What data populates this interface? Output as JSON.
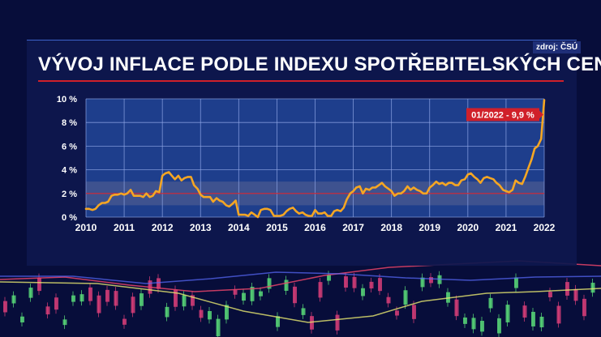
{
  "page": {
    "title": "VÝVOJ INFLACE PODLE INDEXU SPOTŘEBITELSKÝCH CEN",
    "source": "zdroj: ČSÚ"
  },
  "colors": {
    "background": "#070d3a",
    "panel": "#0e184e",
    "plot_area": "#1e3e8c",
    "grid": "#8fa6e6",
    "line": "#f5a623",
    "target_band": "#4a5a90",
    "target_line": "#d0202a",
    "callout": "#d0202a"
  },
  "chart_data": {
    "type": "line",
    "title": "VÝVOJ INFLACE PODLE INDEXU SPOTŘEBITELSKÝCH CEN",
    "xlabel": "",
    "ylabel": "",
    "x_range": [
      2010,
      2022
    ],
    "ylim": [
      0,
      10
    ],
    "x_ticks": [
      "2010",
      "2011",
      "2012",
      "2013",
      "2014",
      "2015",
      "2016",
      "2017",
      "2018",
      "2019",
      "2020",
      "2021",
      "2022"
    ],
    "y_ticks": [
      "0 %",
      "2 %",
      "4 %",
      "6 %",
      "8 %",
      "10 %"
    ],
    "grid": true,
    "target_band": [
      1,
      3
    ],
    "target_line": 2,
    "annotation": {
      "text": "01/2022 - 9,9 %",
      "x": 2022,
      "y": 9.9
    },
    "series": [
      {
        "points": [
          [
            2010.0,
            0.7
          ],
          [
            2010.08,
            0.7
          ],
          [
            2010.17,
            0.6
          ],
          [
            2010.25,
            0.7
          ],
          [
            2010.33,
            1.0
          ],
          [
            2010.42,
            1.2
          ],
          [
            2010.5,
            1.2
          ],
          [
            2010.58,
            1.3
          ],
          [
            2010.67,
            1.8
          ],
          [
            2010.75,
            1.9
          ],
          [
            2010.83,
            1.9
          ],
          [
            2010.92,
            2.0
          ],
          [
            2011.0,
            1.9
          ],
          [
            2011.08,
            2.0
          ],
          [
            2011.17,
            2.3
          ],
          [
            2011.25,
            1.8
          ],
          [
            2011.33,
            1.8
          ],
          [
            2011.42,
            1.8
          ],
          [
            2011.5,
            1.7
          ],
          [
            2011.58,
            2.0
          ],
          [
            2011.67,
            1.7
          ],
          [
            2011.75,
            1.8
          ],
          [
            2011.83,
            2.2
          ],
          [
            2011.92,
            2.1
          ],
          [
            2012.0,
            3.5
          ],
          [
            2012.08,
            3.7
          ],
          [
            2012.17,
            3.8
          ],
          [
            2012.25,
            3.5
          ],
          [
            2012.33,
            3.2
          ],
          [
            2012.42,
            3.5
          ],
          [
            2012.5,
            3.1
          ],
          [
            2012.58,
            3.3
          ],
          [
            2012.67,
            3.4
          ],
          [
            2012.75,
            3.4
          ],
          [
            2012.83,
            2.7
          ],
          [
            2012.92,
            2.4
          ],
          [
            2013.0,
            1.9
          ],
          [
            2013.08,
            1.7
          ],
          [
            2013.17,
            1.7
          ],
          [
            2013.25,
            1.7
          ],
          [
            2013.33,
            1.3
          ],
          [
            2013.42,
            1.6
          ],
          [
            2013.5,
            1.4
          ],
          [
            2013.58,
            1.3
          ],
          [
            2013.67,
            1.0
          ],
          [
            2013.75,
            0.9
          ],
          [
            2013.83,
            1.1
          ],
          [
            2013.92,
            1.4
          ],
          [
            2014.0,
            0.2
          ],
          [
            2014.08,
            0.2
          ],
          [
            2014.17,
            0.2
          ],
          [
            2014.25,
            0.1
          ],
          [
            2014.33,
            0.4
          ],
          [
            2014.42,
            0.2
          ],
          [
            2014.5,
            0.0
          ],
          [
            2014.58,
            0.6
          ],
          [
            2014.67,
            0.7
          ],
          [
            2014.75,
            0.7
          ],
          [
            2014.83,
            0.6
          ],
          [
            2014.92,
            0.1
          ],
          [
            2015.0,
            0.1
          ],
          [
            2015.08,
            0.1
          ],
          [
            2015.17,
            0.2
          ],
          [
            2015.25,
            0.5
          ],
          [
            2015.33,
            0.7
          ],
          [
            2015.42,
            0.8
          ],
          [
            2015.5,
            0.5
          ],
          [
            2015.58,
            0.3
          ],
          [
            2015.67,
            0.4
          ],
          [
            2015.75,
            0.2
          ],
          [
            2015.83,
            0.1
          ],
          [
            2015.92,
            0.1
          ],
          [
            2016.0,
            0.6
          ],
          [
            2016.08,
            0.3
          ],
          [
            2016.17,
            0.3
          ],
          [
            2016.25,
            0.4
          ],
          [
            2016.33,
            0.1
          ],
          [
            2016.42,
            0.1
          ],
          [
            2016.5,
            0.5
          ],
          [
            2016.58,
            0.6
          ],
          [
            2016.67,
            0.5
          ],
          [
            2016.75,
            0.8
          ],
          [
            2016.83,
            1.5
          ],
          [
            2016.92,
            2.0
          ],
          [
            2017.0,
            2.2
          ],
          [
            2017.08,
            2.5
          ],
          [
            2017.17,
            2.6
          ],
          [
            2017.25,
            2.0
          ],
          [
            2017.33,
            2.4
          ],
          [
            2017.42,
            2.3
          ],
          [
            2017.5,
            2.5
          ],
          [
            2017.58,
            2.5
          ],
          [
            2017.67,
            2.7
          ],
          [
            2017.75,
            2.9
          ],
          [
            2017.83,
            2.6
          ],
          [
            2017.92,
            2.4
          ],
          [
            2018.0,
            2.2
          ],
          [
            2018.08,
            1.8
          ],
          [
            2018.17,
            2.0
          ],
          [
            2018.25,
            2.0
          ],
          [
            2018.33,
            2.2
          ],
          [
            2018.42,
            2.6
          ],
          [
            2018.5,
            2.3
          ],
          [
            2018.58,
            2.5
          ],
          [
            2018.67,
            2.3
          ],
          [
            2018.75,
            2.2
          ],
          [
            2018.83,
            2.0
          ],
          [
            2018.92,
            2.0
          ],
          [
            2019.0,
            2.5
          ],
          [
            2019.08,
            2.7
          ],
          [
            2019.17,
            3.0
          ],
          [
            2019.25,
            2.8
          ],
          [
            2019.33,
            2.9
          ],
          [
            2019.42,
            2.7
          ],
          [
            2019.5,
            2.9
          ],
          [
            2019.58,
            2.9
          ],
          [
            2019.67,
            2.7
          ],
          [
            2019.75,
            2.7
          ],
          [
            2019.83,
            3.1
          ],
          [
            2019.92,
            3.2
          ],
          [
            2020.0,
            3.6
          ],
          [
            2020.08,
            3.7
          ],
          [
            2020.17,
            3.4
          ],
          [
            2020.25,
            3.2
          ],
          [
            2020.33,
            2.9
          ],
          [
            2020.42,
            3.3
          ],
          [
            2020.5,
            3.4
          ],
          [
            2020.58,
            3.3
          ],
          [
            2020.67,
            3.2
          ],
          [
            2020.75,
            2.9
          ],
          [
            2020.83,
            2.7
          ],
          [
            2020.92,
            2.3
          ],
          [
            2021.0,
            2.2
          ],
          [
            2021.08,
            2.1
          ],
          [
            2021.17,
            2.3
          ],
          [
            2021.25,
            3.1
          ],
          [
            2021.33,
            2.9
          ],
          [
            2021.42,
            2.8
          ],
          [
            2021.5,
            3.4
          ],
          [
            2021.58,
            4.1
          ],
          [
            2021.67,
            4.9
          ],
          [
            2021.75,
            5.8
          ],
          [
            2021.83,
            6.0
          ],
          [
            2021.92,
            6.6
          ],
          [
            2022.0,
            9.9
          ]
        ]
      }
    ]
  }
}
